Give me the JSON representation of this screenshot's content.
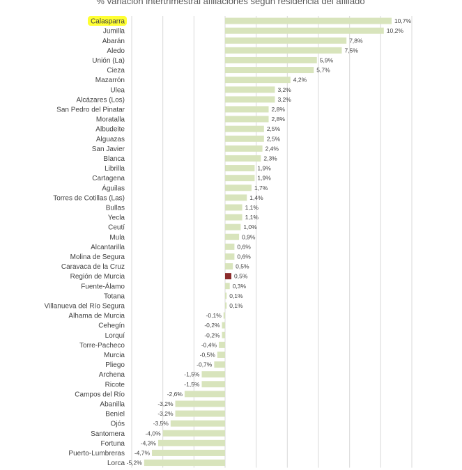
{
  "chart_data": {
    "type": "bar",
    "orientation": "horizontal",
    "title": "% variación intertrimestral afiliaciones según residencia del afiliado",
    "categories": [
      "Calasparra",
      "Jumilla",
      "Abarán",
      "Aledo",
      "Unión (La)",
      "Cieza",
      "Mazarrón",
      "Ulea",
      "Alcázares (Los)",
      "San Pedro del Pinatar",
      "Moratalla",
      "Albudeite",
      "Alguazas",
      "San Javier",
      "Blanca",
      "Librilla",
      "Cartagena",
      "Águilas",
      "Torres de Cotillas (Las)",
      "Bullas",
      "Yecla",
      "Ceutí",
      "Mula",
      "Alcantarilla",
      "Molina de Segura",
      "Caravaca de la Cruz",
      "Región de Murcia",
      "Fuente-Álamo",
      "Totana",
      "Villanueva del Río Segura",
      "Alhama de Murcia",
      "Cehegín",
      "Lorquí",
      "Torre-Pacheco",
      "Murcia",
      "Pliego",
      "Archena",
      "Ricote",
      "Campos del Río",
      "Abanilla",
      "Beniel",
      "Ojós",
      "Santomera",
      "Fortuna",
      "Puerto-Lumbreras",
      "Lorca"
    ],
    "values": [
      10.7,
      10.2,
      7.8,
      7.5,
      5.9,
      5.7,
      4.2,
      3.2,
      3.2,
      2.8,
      2.8,
      2.5,
      2.5,
      2.4,
      2.3,
      1.9,
      1.9,
      1.7,
      1.4,
      1.1,
      1.1,
      1.0,
      0.9,
      0.6,
      0.6,
      0.5,
      0.5,
      0.3,
      0.1,
      0.1,
      -0.1,
      -0.2,
      -0.2,
      -0.4,
      -0.5,
      -0.7,
      -1.5,
      -1.5,
      -2.6,
      -3.2,
      -3.2,
      -3.5,
      -4.0,
      -4.3,
      -4.7,
      -5.2
    ],
    "value_labels": [
      "10,7%",
      "10,2%",
      "7,8%",
      "7,5%",
      "5,9%",
      "5,7%",
      "4,2%",
      "3,2%",
      "3,2%",
      "2,8%",
      "2,8%",
      "2,5%",
      "2,5%",
      "2,4%",
      "2,3%",
      "1,9%",
      "1,9%",
      "1,7%",
      "1,4%",
      "1,1%",
      "1,1%",
      "1,0%",
      "0,9%",
      "0,6%",
      "0,6%",
      "0,5%",
      "0,5%",
      "0,3%",
      "0,1%",
      "0,1%",
      "-0,1%",
      "-0,2%",
      "-0,2%",
      "-0,4%",
      "-0,5%",
      "-0,7%",
      "-1,5%",
      "-1,5%",
      "-2,6%",
      "-3,2%",
      "-3,2%",
      "-3,5%",
      "-4,0%",
      "-4,3%",
      "-4,7%",
      "-5,2%"
    ],
    "xlim": [
      -6,
      12
    ],
    "grid": true,
    "highlighted_category": "Calasparra",
    "highlight_color": "#ffff33",
    "bar_color": "#d8e4bc",
    "emphasis_category": "Región de Murcia",
    "emphasis_color": "#8b2b2b"
  }
}
